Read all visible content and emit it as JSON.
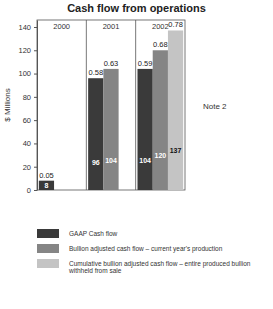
{
  "chart_data": {
    "type": "bar",
    "title": "Cash flow from operations",
    "y_label": "$ Millions",
    "categories": [
      "2000",
      "2001",
      "2002"
    ],
    "series": [
      {
        "name": "GAAP Cash flow",
        "color": "#3a3a3a",
        "values": [
          8,
          96,
          104
        ],
        "per_share": [
          0.05,
          0.58,
          0.59
        ]
      },
      {
        "name": "Bullion adjusted cash flow – current year's production",
        "color": "#858585",
        "values": [
          null,
          104,
          120
        ],
        "per_share": [
          null,
          0.63,
          0.68
        ]
      },
      {
        "name": "Cumulative bullion adjusted cash flow – entire produced bullion withheld from sale",
        "color": "#c4c4c4",
        "values": [
          null,
          null,
          137
        ],
        "per_share": [
          null,
          null,
          0.78
        ]
      }
    ],
    "ylim": [
      0,
      146
    ],
    "yticks": [
      0,
      20,
      40,
      60,
      80,
      100,
      120,
      140
    ],
    "grid": false,
    "legend": "bottom",
    "data_labels": true,
    "annotations": [
      {
        "text": "Note 2"
      }
    ]
  }
}
